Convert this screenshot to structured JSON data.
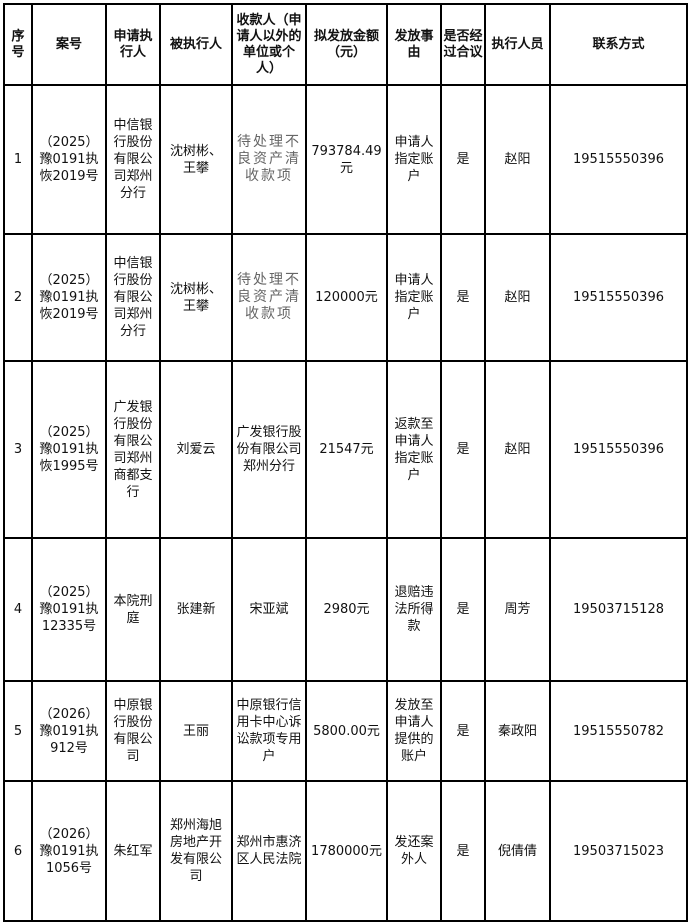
{
  "headers": [
    "序号",
    "案号",
    "申请执行人",
    "被执行人",
    "收款人（申请人以外的单位或个人）",
    "拟发放金额（元）",
    "发放事由",
    "是否经过合议",
    "执行人员",
    "联系方式"
  ],
  "rows": [
    {
      "no": "1",
      "case": "（2025）豫0191执恢2019号",
      "applicant": "中信银行股份有限公司郑州分行",
      "respondent": "沈树彬、王攀",
      "payee": "待处理不良资产清收款项",
      "amount": "793784.49元",
      "reason": "申请人指定账户",
      "collegial": "是",
      "officer": "赵阳",
      "contact": "19515550396"
    },
    {
      "no": "2",
      "case": "（2025）豫0191执恢2019号",
      "applicant": "中信银行股份有限公司郑州分行",
      "respondent": "沈树彬、王攀",
      "payee": "待处理不良资产清收款项",
      "amount": "120000元",
      "reason": "申请人指定账户",
      "collegial": "是",
      "officer": "赵阳",
      "contact": "19515550396"
    },
    {
      "no": "3",
      "case": "（2025）豫0191执恢1995号",
      "applicant": "广发银行股份有限公司郑州商都支行",
      "respondent": "刘爱云",
      "payee": "广发银行股份有限公司郑州分行",
      "amount": "21547元",
      "reason": "返款至申请人指定账户",
      "collegial": "是",
      "officer": "赵阳",
      "contact": "19515550396"
    },
    {
      "no": "4",
      "case": "（2025）豫0191执12335号",
      "applicant": "本院刑庭",
      "respondent": "张建新",
      "payee": "宋亚斌",
      "amount": "2980元",
      "reason": "退赔违法所得款",
      "collegial": "是",
      "officer": "周芳",
      "contact": "19503715128"
    },
    {
      "no": "5",
      "case": "（2026）豫0191执912号",
      "applicant": "中原银行股份有限公司",
      "respondent": "王丽",
      "payee": "中原银行信用卡中心诉讼款项专用户",
      "amount": "5800.00元",
      "reason": "发放至申请人提供的账户",
      "collegial": "是",
      "officer": "秦政阳",
      "contact": "19515550782"
    },
    {
      "no": "6",
      "case": "（2026）豫0191执1056号",
      "applicant": "朱红军",
      "respondent": "郑州海旭房地产开发有限公司",
      "payee": "郑州市惠济区人民法院",
      "amount": "1780000元",
      "reason": "发还案外人",
      "collegial": "是",
      "officer": "倪倩倩",
      "contact": "19503715023"
    }
  ]
}
